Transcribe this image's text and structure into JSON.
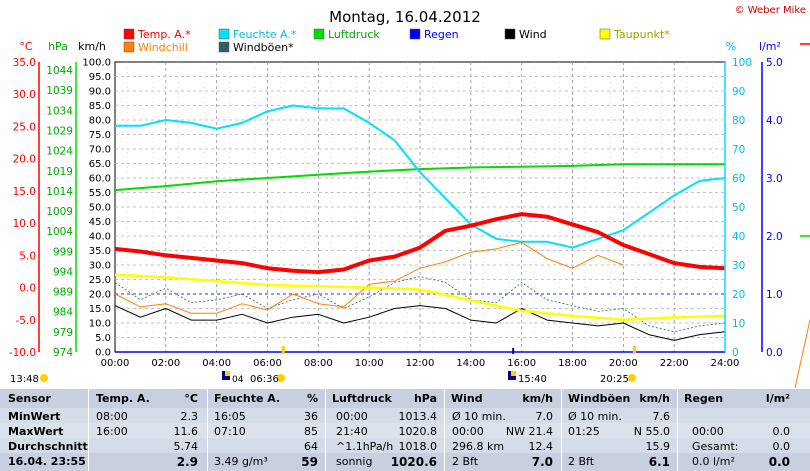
{
  "header": {
    "title": "Montag, 16.04.2012",
    "copyright": "© Weber Mike"
  },
  "axis_headers": {
    "temp_unit": "°C",
    "press_unit": "hPa",
    "wind_unit": "km/h",
    "hum_unit": "%",
    "rain_unit": "l/m²"
  },
  "legend": [
    {
      "label": "Temp. A.*",
      "color": "#ff0000"
    },
    {
      "label": "Feuchte A.*",
      "color": "#00e0ff"
    },
    {
      "label": "Luftdruck",
      "color": "#00dd00"
    },
    {
      "label": "Regen",
      "color": "#0000ff"
    },
    {
      "label": "Wind",
      "color": "#000000"
    },
    {
      "label": "Taupunkt*",
      "color": "#ffff00"
    },
    {
      "label": "Windchill",
      "color": "#ff8000"
    },
    {
      "label": "Windböen*",
      "color": "#306060"
    }
  ],
  "sun": {
    "sunrise": "06:36",
    "sunset": "20:25",
    "left_time": "13:48",
    "moon_time": "15:40",
    "moon_time2": "04"
  },
  "chart_data": {
    "type": "line",
    "title": "Montag, 16.04.2012",
    "x_ticks": [
      "00:00",
      "02:00",
      "04:00",
      "06:00",
      "08:00",
      "10:00",
      "12:00",
      "14:00",
      "16:00",
      "18:00",
      "20:00",
      "22:00",
      "24:00"
    ],
    "y_axes": {
      "temperature_c": {
        "range": [
          -10,
          35
        ],
        "ticks": [
          "35.0",
          "30.0",
          "25.0",
          "20.0",
          "15.0",
          "10.0",
          "5.0",
          "0.0",
          "-5.0",
          "-10.0"
        ],
        "color": "#ff0000"
      },
      "pressure_hpa": {
        "range": [
          974,
          1046
        ],
        "ticks": [
          "1044",
          "1039",
          "1034",
          "1029",
          "1024",
          "1019",
          "1014",
          "1009",
          "1004",
          "999",
          "994",
          "989",
          "984",
          "979",
          "974"
        ],
        "color": "#00aa00"
      },
      "wind_kmh": {
        "range": [
          0,
          100
        ],
        "ticks": [
          "100.0",
          "95.0",
          "90.0",
          "85.0",
          "80.0",
          "75.0",
          "70.0",
          "65.0",
          "60.0",
          "55.0",
          "50.0",
          "45.0",
          "40.0",
          "35.0",
          "30.0",
          "25.0",
          "20.0",
          "15.0",
          "10.0",
          "5.0",
          "0.0"
        ],
        "color": "#000000"
      },
      "humidity_pct": {
        "range": [
          0,
          100
        ],
        "ticks": [
          "100",
          "90",
          "80",
          "70",
          "60",
          "50",
          "40",
          "30",
          "20",
          "10",
          "0"
        ],
        "color": "#00c0e0"
      },
      "rain_lm2": {
        "range": [
          0,
          5
        ],
        "ticks": [
          "5.0",
          "4.0",
          "3.0",
          "2.0",
          "1.0",
          "0.0"
        ],
        "color": "#0000ff"
      }
    },
    "series": [
      {
        "name": "Temp. A.*",
        "axis": "temperature_c",
        "color": "#ff0000",
        "x": [
          0,
          1,
          2,
          3,
          4,
          5,
          6,
          7,
          8,
          9,
          10,
          11,
          12,
          13,
          14,
          15,
          16,
          17,
          18,
          19,
          20,
          21,
          22,
          23,
          24
        ],
        "y": [
          6.0,
          5.6,
          5.0,
          4.6,
          4.2,
          3.8,
          3.0,
          2.6,
          2.4,
          2.8,
          4.2,
          4.8,
          6.2,
          8.8,
          9.6,
          10.6,
          11.4,
          11.0,
          9.8,
          8.6,
          6.6,
          5.2,
          3.8,
          3.2,
          3.0
        ]
      },
      {
        "name": "Feuchte A.*",
        "axis": "humidity_pct",
        "color": "#00e0ff",
        "x": [
          0,
          1,
          2,
          3,
          4,
          5,
          6,
          7,
          8,
          9,
          10,
          11,
          12,
          13,
          14,
          15,
          16,
          17,
          18,
          19,
          20,
          21,
          22,
          23,
          24
        ],
        "y": [
          78,
          78,
          80,
          79,
          77,
          79,
          83,
          85,
          84,
          84,
          79,
          73,
          62,
          53,
          44,
          39,
          38,
          38,
          36,
          39,
          42,
          48,
          54,
          59,
          60
        ]
      },
      {
        "name": "Luftdruck",
        "axis": "pressure_hpa",
        "color": "#00dd00",
        "x": [
          0,
          2,
          4,
          6,
          8,
          10,
          12,
          14,
          16,
          18,
          20,
          22,
          24
        ],
        "y": [
          1014.2,
          1015.2,
          1016.4,
          1017.2,
          1018.0,
          1018.8,
          1019.4,
          1019.8,
          1020.0,
          1020.2,
          1020.6,
          1020.6,
          1020.6
        ]
      },
      {
        "name": "Taupunkt*",
        "axis": "temperature_c",
        "color": "#ffff00",
        "x": [
          0,
          2,
          4,
          6,
          8,
          10,
          12,
          14,
          16,
          18,
          20,
          22,
          24
        ],
        "y": [
          2.0,
          1.6,
          1.0,
          0.4,
          0.2,
          0.0,
          -0.3,
          -2.0,
          -3.6,
          -4.4,
          -5.0,
          -4.6,
          -4.4
        ]
      },
      {
        "name": "Windchill",
        "axis": "temperature_c",
        "color": "#ff8000",
        "x": [
          0,
          1,
          2,
          3,
          4,
          5,
          6,
          7,
          8,
          9,
          10,
          11,
          12,
          13,
          14,
          15,
          16,
          17,
          18,
          19,
          20,
          21,
          22,
          23,
          24
        ],
        "y": [
          -1.0,
          -3.0,
          -2.5,
          -4.0,
          -4.0,
          -2.5,
          -3.5,
          -1.0,
          -2.5,
          -3.0,
          0.5,
          1.0,
          3.0,
          4.0,
          5.5,
          6.0,
          7.0,
          4.5,
          3.0,
          5.0,
          3.5,
          null,
          null,
          null,
          2.5
        ]
      },
      {
        "name": "Wind",
        "axis": "wind_kmh",
        "color": "#000000",
        "x": [
          0,
          1,
          2,
          3,
          4,
          5,
          6,
          7,
          8,
          9,
          10,
          11,
          12,
          13,
          14,
          15,
          16,
          17,
          18,
          19,
          20,
          21,
          22,
          23,
          24
        ],
        "y": [
          16,
          12,
          15,
          11,
          11,
          13,
          10,
          12,
          13,
          10,
          12,
          15,
          16,
          15,
          11,
          10,
          15,
          11,
          10,
          9,
          10,
          6,
          4,
          6,
          7
        ]
      },
      {
        "name": "Windböen*",
        "axis": "wind_kmh",
        "color": "#306060",
        "x": [
          0,
          1,
          2,
          3,
          4,
          5,
          6,
          7,
          8,
          9,
          10,
          11,
          12,
          13,
          14,
          15,
          16,
          17,
          18,
          19,
          20,
          21,
          22,
          23,
          24
        ],
        "y": [
          24,
          18,
          22,
          17,
          18,
          20,
          15,
          18,
          20,
          15,
          19,
          24,
          26,
          24,
          18,
          17,
          24,
          18,
          16,
          14,
          15,
          9,
          7,
          9,
          10
        ]
      },
      {
        "name": "Regen",
        "axis": "rain_lm2",
        "color": "#0000ff",
        "x": [
          0,
          24
        ],
        "y": [
          0,
          0
        ]
      }
    ],
    "grid": true
  },
  "table": {
    "headers": [
      "Sensor",
      "Temp. A.",
      "°C",
      "Feuchte A.",
      "%",
      "Luftdruck",
      "hPa",
      "Wind",
      "km/h",
      "Windböen",
      "km/h",
      "Regen",
      "l/m²"
    ],
    "rows": [
      {
        "label": "MinWert",
        "cells": [
          "08:00",
          "2.3",
          "16:05",
          "36",
          "00:00",
          "1013.4",
          "Ø 10 min.",
          "7.0",
          "Ø 10 min.",
          "7.6",
          "",
          ""
        ]
      },
      {
        "label": "MaxWert",
        "cells": [
          "16:00",
          "11.6",
          "07:10",
          "85",
          "21:40",
          "1020.8",
          "00:00",
          "NW 21.4",
          "01:25",
          "N 55.0",
          "00:00",
          "0.0"
        ]
      },
      {
        "label": "Durchschnitt",
        "cells": [
          "",
          "5.74",
          "",
          "64",
          "^1.1hPa/h",
          "1018.0",
          "296.8 km",
          "12.4",
          "",
          "15.9",
          "Gesamt:",
          "0.0"
        ]
      },
      {
        "label": "16.04. 23:55",
        "cells": [
          "",
          "2.9",
          "3.49 g/m³",
          "59",
          "sonnig",
          "1020.6",
          "2 Bft",
          "7.0",
          "2 Bft",
          "6.1",
          "0.0 l/m²",
          "0.0"
        ]
      }
    ]
  }
}
